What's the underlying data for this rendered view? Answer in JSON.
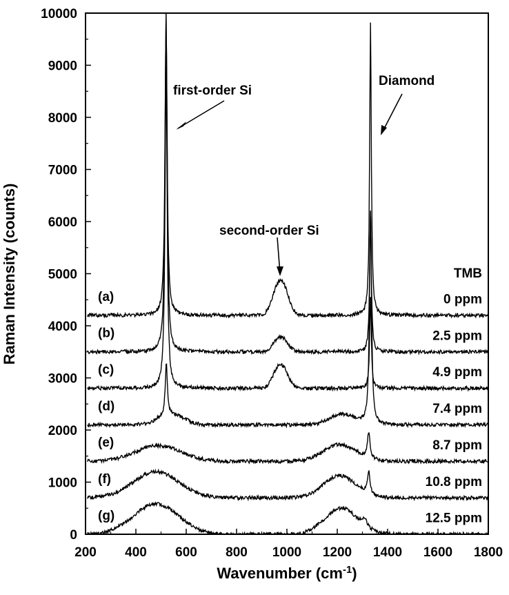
{
  "chart_data": {
    "type": "line",
    "xlabel": "Wavenumber (cm",
    "xlabel_sup": "-1",
    "xlabel_close": ")",
    "ylabel": "Raman Intensity (counts)",
    "xlim": [
      200,
      1800
    ],
    "ylim": [
      0,
      10000
    ],
    "xticks": [
      200,
      400,
      600,
      800,
      1000,
      1200,
      1400,
      1600,
      1800
    ],
    "yticks": [
      0,
      1000,
      2000,
      3000,
      4000,
      5000,
      6000,
      7000,
      8000,
      9000,
      10000
    ],
    "legend_title": "TMB",
    "annotations": [
      {
        "text": "first-order Si",
        "point_to": [
          520,
          7750
        ]
      },
      {
        "text": "second-order Si",
        "point_to": [
          975,
          4650
        ]
      },
      {
        "text": "Diamond",
        "point_to": [
          1335,
          7800
        ]
      }
    ],
    "series": [
      {
        "name": "(a)",
        "concentration": "0 ppm",
        "baseline": 4200,
        "peaks": [
          {
            "x": 520,
            "h": 5800,
            "w": 5
          },
          {
            "x": 1332,
            "h": 5600,
            "w": 4
          }
        ],
        "bumps": [
          {
            "x": 960,
            "h": 420,
            "w": 22
          },
          {
            "x": 990,
            "h": 420,
            "w": 22
          }
        ]
      },
      {
        "name": "(b)",
        "concentration": "2.5 ppm",
        "baseline": 3500,
        "peaks": [
          {
            "x": 520,
            "h": 6500,
            "w": 5
          },
          {
            "x": 1332,
            "h": 2700,
            "w": 4
          }
        ],
        "bumps": [
          {
            "x": 960,
            "h": 190,
            "w": 20
          },
          {
            "x": 990,
            "h": 190,
            "w": 20
          }
        ]
      },
      {
        "name": "(c)",
        "concentration": "4.9 ppm",
        "baseline": 2800,
        "peaks": [
          {
            "x": 520,
            "h": 6200,
            "w": 5
          },
          {
            "x": 1332,
            "h": 1750,
            "w": 4
          }
        ],
        "bumps": [
          {
            "x": 960,
            "h": 300,
            "w": 20
          },
          {
            "x": 990,
            "h": 300,
            "w": 20
          }
        ]
      },
      {
        "name": "(d)",
        "concentration": "7.4 ppm",
        "baseline": 2100,
        "peaks": [
          {
            "x": 521,
            "h": 1000,
            "w": 5
          },
          {
            "x": 1332,
            "h": 4100,
            "w": 5
          }
        ],
        "bumps": [
          {
            "x": 540,
            "h": 200,
            "w": 50
          },
          {
            "x": 1220,
            "h": 200,
            "w": 50
          }
        ]
      },
      {
        "name": "(e)",
        "concentration": "8.7 ppm",
        "baseline": 1400,
        "peaks": [
          {
            "x": 1325,
            "h": 500,
            "w": 6
          }
        ],
        "bumps": [
          {
            "x": 490,
            "h": 300,
            "w": 90
          },
          {
            "x": 1210,
            "h": 320,
            "w": 65
          }
        ]
      },
      {
        "name": "(f)",
        "concentration": "10.8 ppm",
        "baseline": 700,
        "peaks": [
          {
            "x": 1325,
            "h": 450,
            "w": 6
          }
        ],
        "bumps": [
          {
            "x": 480,
            "h": 500,
            "w": 90
          },
          {
            "x": 1210,
            "h": 420,
            "w": 65
          }
        ]
      },
      {
        "name": "(g)",
        "concentration": "12.5 ppm",
        "baseline": 0,
        "peaks": [
          {
            "x": 1310,
            "h": 150,
            "w": 10
          }
        ],
        "bumps": [
          {
            "x": 480,
            "h": 580,
            "w": 90
          },
          {
            "x": 1215,
            "h": 500,
            "w": 65
          }
        ]
      }
    ]
  }
}
